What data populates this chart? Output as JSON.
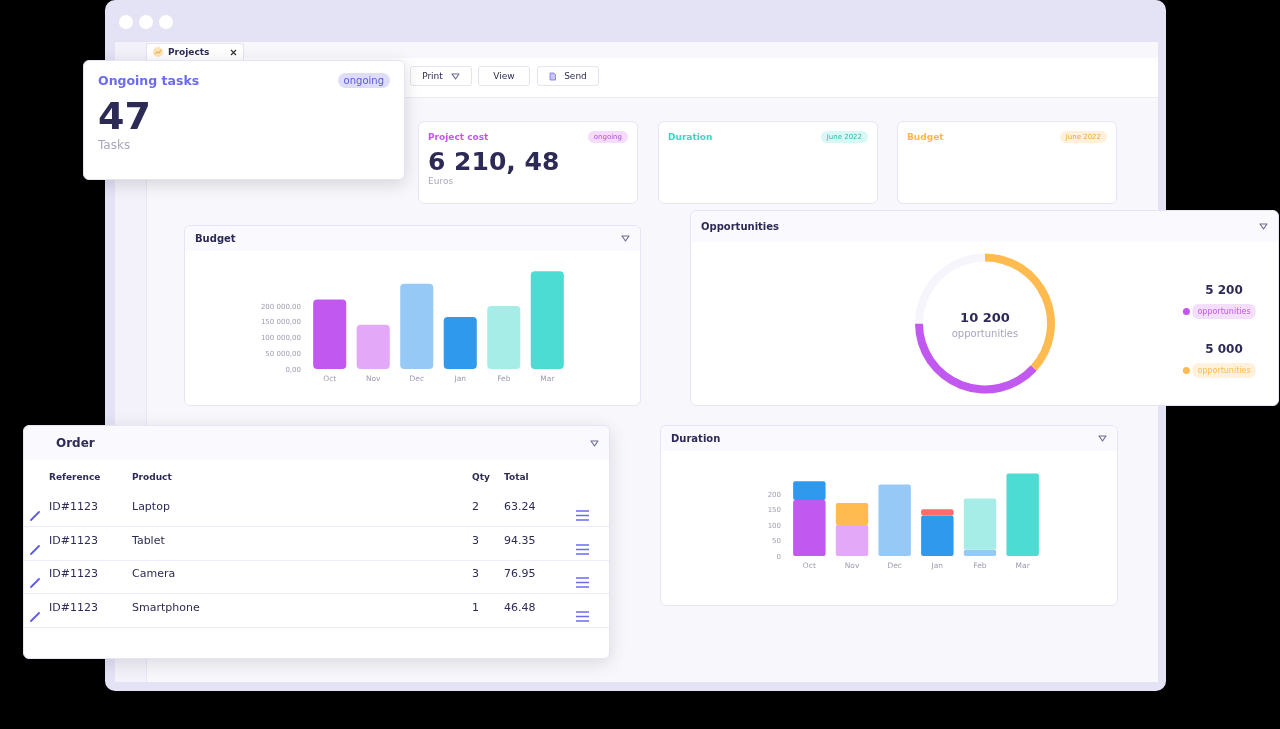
{
  "chart_data": [
    {
      "type": "other",
      "annotations": [
        "Projects",
        "Print",
        "View",
        "Send"
      ]
    },
    {
      "type": "other",
      "title": "Ongoing tasks",
      "annotations": [
        "ongoing",
        "47",
        "Tasks"
      ]
    },
    {
      "type": "other",
      "title": "Project cost",
      "annotations": [
        "ongoing",
        "6 210, 48",
        "Euros"
      ]
    },
    {
      "type": "other",
      "title": "Duration",
      "annotations": [
        "June 2022"
      ]
    },
    {
      "type": "other",
      "title": "Budget",
      "annotations": [
        "June 2022"
      ]
    },
    {
      "type": "bar",
      "title": "Budget",
      "categories": [
        "Oct",
        "Nov",
        "Dec",
        "Jan",
        "Feb",
        "Mar"
      ],
      "values": [
        220000,
        140000,
        270000,
        165000,
        200000,
        310000
      ],
      "colors": [
        "#c158f0",
        "#e3a8f7",
        "#97c9f7",
        "#2f99ee",
        "#a5ede6",
        "#4ddcd3"
      ],
      "ylim": [
        0,
        320000
      ],
      "yticks": [
        {
          "value": 0,
          "label": "0,00"
        },
        {
          "value": 50000,
          "label": "50 000,00"
        },
        {
          "value": 100000,
          "label": "100 000,00"
        },
        {
          "value": 150000,
          "label": "150 000,00"
        },
        {
          "value": 200000,
          "label": "200 000,00"
        }
      ],
      "grid": false
    },
    {
      "type": "donut",
      "title": "Opportunities",
      "categories": [
        "opportunities",
        "opportunities",
        null
      ],
      "values": [
        5200,
        5000,
        3400
      ],
      "colors": [
        "#c158f0",
        "#ffbb4f",
        "#f6f5fc"
      ],
      "value_labels": [
        "5 200",
        "5 000",
        null
      ],
      "legend": "right",
      "annotations": [
        "10 200",
        "opportunities"
      ]
    },
    {
      "type": "other",
      "title": "Order",
      "annotations": [
        "Reference",
        "Product",
        "Qty",
        "Total",
        "ID#1123",
        "Laptop",
        "2",
        "63.24",
        "ID#1123",
        "Tablet",
        "3",
        "94.35",
        "ID#1123",
        "Camera",
        "3",
        "76.95",
        "ID#1123",
        "Smartphone",
        "1",
        "46.48"
      ]
    },
    {
      "type": "bar",
      "title": "Duration",
      "stacked": true,
      "categories": [
        "Oct",
        "Nov",
        "Dec",
        "Jan",
        "Feb",
        "Mar"
      ],
      "ylim": [
        0,
        270
      ],
      "yticks": [
        0,
        50,
        100,
        150,
        200
      ],
      "grid": false,
      "series": [
        {
          "colors": [
            "#c158f0",
            "#e3a8f7",
            "#97c9f7",
            "#2f99ee",
            "#97c9f7",
            "#4ddcd3"
          ],
          "values": [
            180,
            100,
            230,
            130,
            20,
            265
          ]
        },
        {
          "colors": [
            "#2f99ee",
            "#ffbb4f",
            null,
            "#ff6b6b",
            "#a5ede6",
            null
          ],
          "values": [
            60,
            70,
            null,
            20,
            165,
            null
          ]
        }
      ]
    }
  ]
}
